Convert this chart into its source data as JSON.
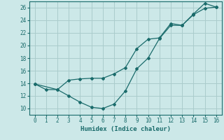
{
  "xlabel": "Humidex (Indice chaleur)",
  "background_color": "#cce8e8",
  "grid_color": "#aacccc",
  "line_color": "#1a6b6b",
  "xlim": [
    -0.5,
    16.5
  ],
  "ylim": [
    9.0,
    27.0
  ],
  "xticks": [
    0,
    1,
    2,
    3,
    4,
    5,
    6,
    7,
    8,
    9,
    10,
    11,
    12,
    13,
    14,
    15,
    16
  ],
  "yticks": [
    10,
    12,
    14,
    16,
    18,
    20,
    22,
    24,
    26
  ],
  "series1_x": [
    0,
    1,
    2,
    3,
    4,
    5,
    6,
    7,
    8,
    9,
    10,
    11,
    12,
    13,
    14,
    15,
    16
  ],
  "series1_y": [
    13.9,
    13.0,
    13.0,
    12.0,
    11.0,
    10.2,
    10.0,
    10.7,
    12.8,
    16.3,
    18.0,
    21.1,
    23.2,
    23.2,
    25.0,
    26.7,
    26.1
  ],
  "series2_x": [
    0,
    2,
    3,
    4,
    5,
    6,
    7,
    8,
    9,
    10,
    11,
    12,
    13,
    14,
    15,
    16
  ],
  "series2_y": [
    13.9,
    13.0,
    14.5,
    14.7,
    14.8,
    14.8,
    15.5,
    16.5,
    19.5,
    21.0,
    21.2,
    23.5,
    23.2,
    24.9,
    25.9,
    26.1
  ]
}
